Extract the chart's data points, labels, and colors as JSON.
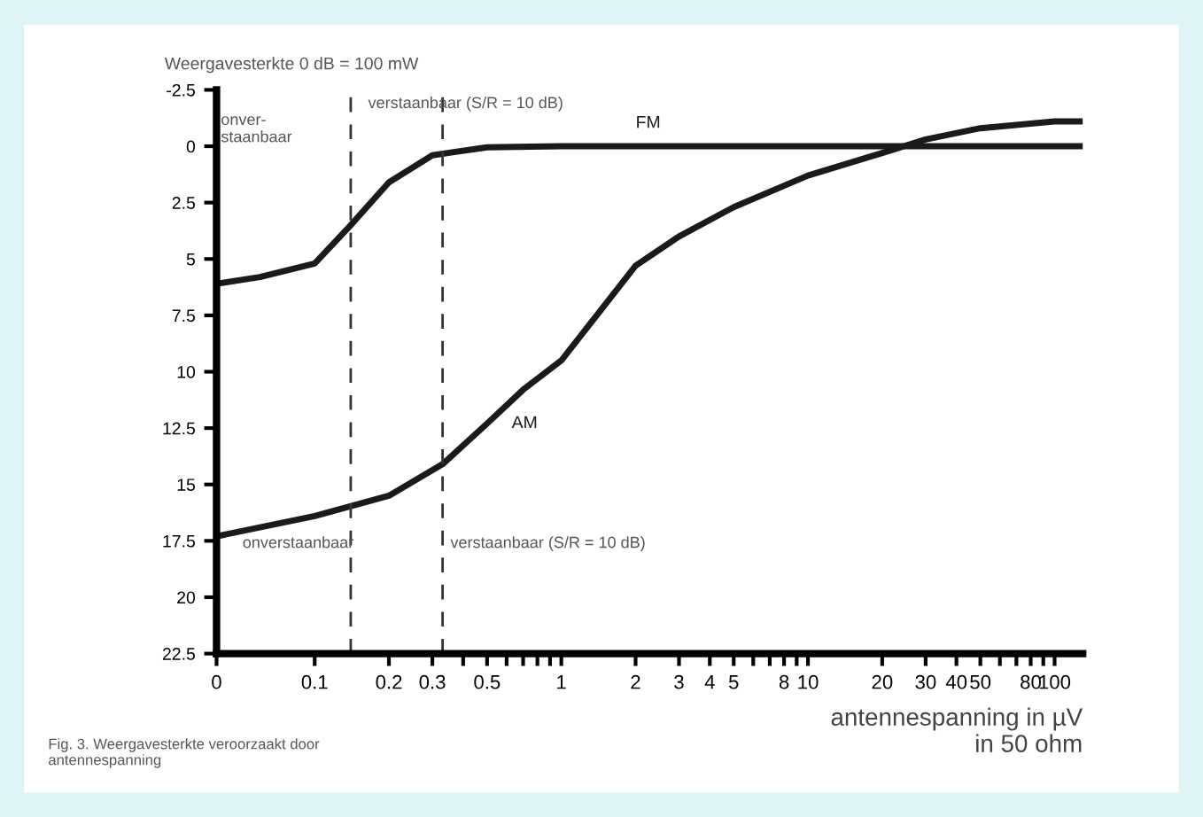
{
  "chart_data": {
    "type": "line",
    "ylabel": "Weergavesterkte 0 dB = 100 mW",
    "xlabel": "antennespanning in µV\nin 50 ohm",
    "log": "x",
    "xlim": [
      0.04,
      130
    ],
    "ylim": [
      22.5,
      -2.5
    ],
    "xticks": [
      {
        "value": 0.04,
        "label": "0"
      },
      0.1,
      0.2,
      0.3,
      {
        "value": 0.4,
        "label": null
      },
      0.5,
      {
        "value": 0.6,
        "label": null
      },
      {
        "value": 0.7,
        "label": null
      },
      {
        "value": 0.8,
        "label": null
      },
      {
        "value": 0.9,
        "label": null
      },
      1,
      2,
      3,
      4,
      5,
      {
        "value": 6,
        "label": null
      },
      {
        "value": 7,
        "label": null
      },
      8,
      {
        "value": 9,
        "label": null
      },
      10,
      20,
      30,
      40,
      50,
      {
        "value": 60,
        "label": null
      },
      {
        "value": 70,
        "label": null
      },
      80,
      {
        "value": 90,
        "label": null
      },
      100
    ],
    "yticks": [
      -2.5,
      0,
      2.5,
      5,
      7.5,
      10,
      12.5,
      15,
      17.5,
      20,
      22.5
    ],
    "line_style": "solid",
    "marker": "none",
    "grid": false,
    "legend": false,
    "series": [
      {
        "name": "FM",
        "color": "#1a1a1a",
        "x": [
          0.04,
          0.06,
          0.1,
          0.14,
          0.2,
          0.3,
          0.5,
          1,
          10,
          130
        ],
        "values": [
          6.1,
          5.8,
          5.2,
          3.5,
          1.6,
          0.4,
          0.05,
          0,
          0,
          0
        ]
      },
      {
        "name": "AM",
        "color": "#1a1a1a",
        "x": [
          0.04,
          0.1,
          0.2,
          0.33,
          0.5,
          0.7,
          1,
          2,
          3,
          5,
          10,
          20,
          30,
          50,
          100,
          130
        ],
        "values": [
          17.3,
          16.4,
          15.5,
          14.1,
          12.3,
          10.8,
          9.5,
          5.3,
          4.0,
          2.7,
          1.3,
          0.3,
          -0.3,
          -0.8,
          -1.1,
          -1.1
        ]
      }
    ],
    "ref_lines": [
      {
        "axis": "x",
        "value": 0.14,
        "label": null,
        "line_style": "dashed",
        "color": "#333333"
      },
      {
        "axis": "x",
        "value": 0.33,
        "label": null,
        "line_style": "dashed",
        "color": "#333333"
      }
    ],
    "annotations": [
      "onver-\nstaanbaar",
      "verstaanbaar (S/R = 10 dB)",
      "onverstaanbaar",
      "verstaanbaar (S/R = 10 dB)",
      "Fig. 3. Weergavesterkte veroorzaakt door\nantennespanning"
    ]
  }
}
